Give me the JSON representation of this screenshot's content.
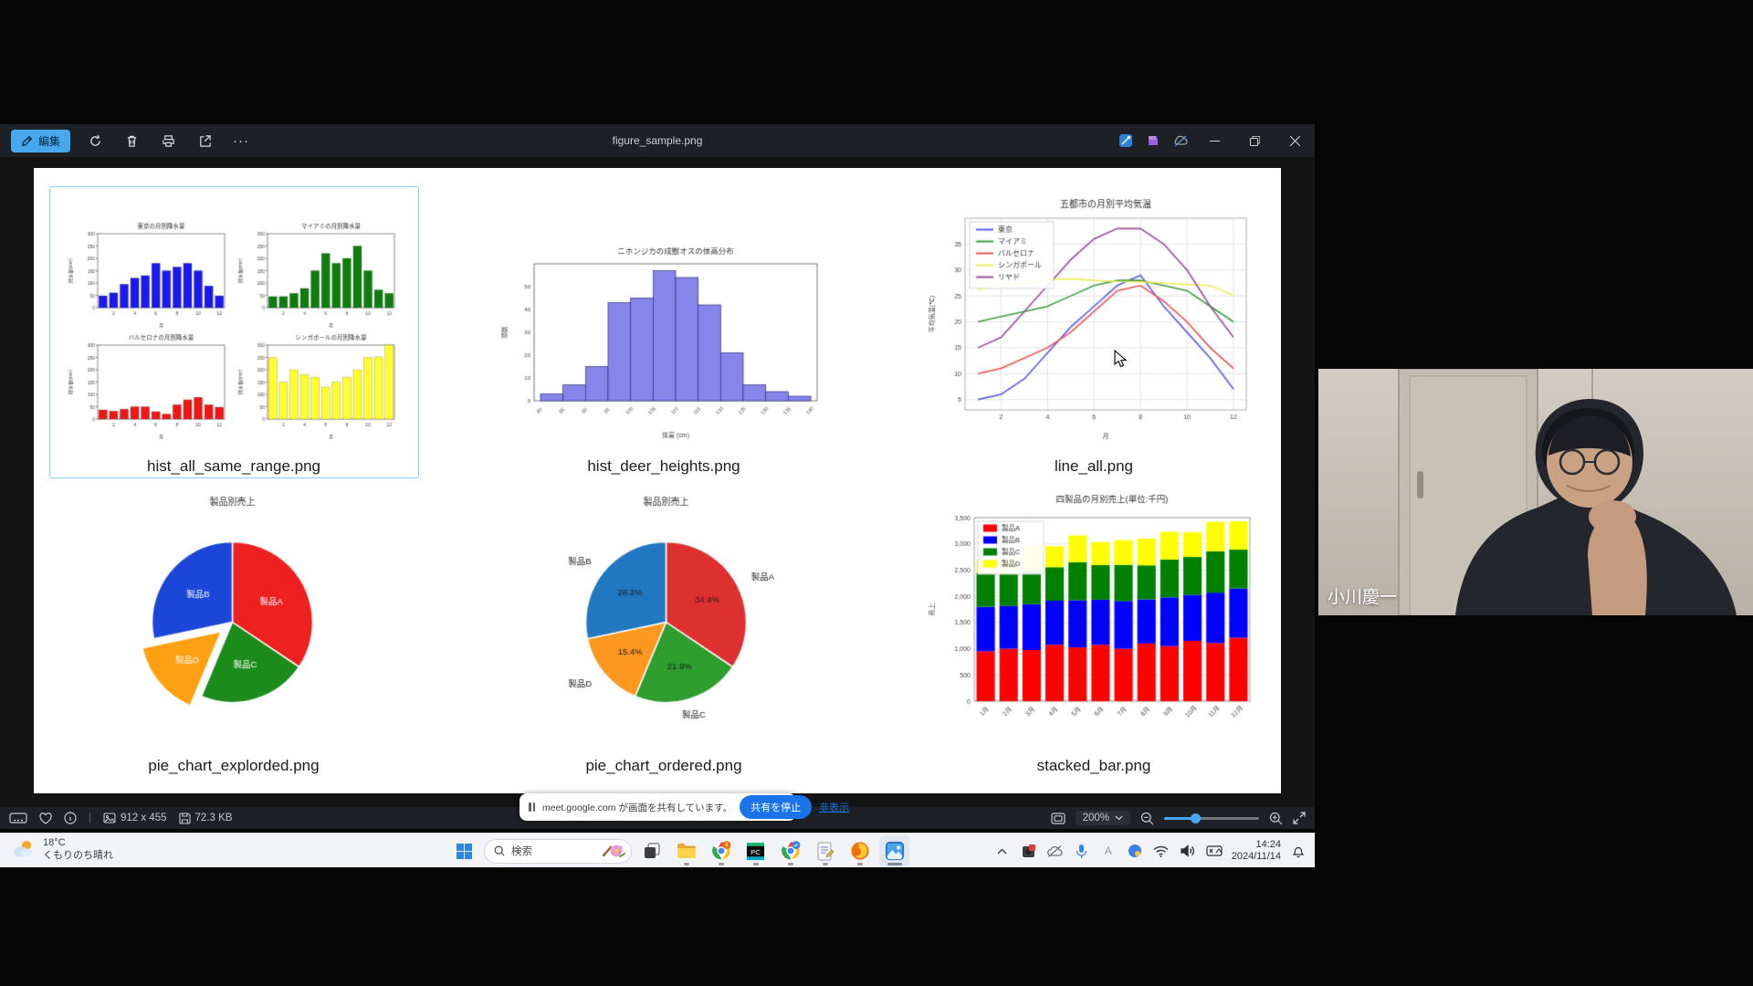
{
  "window": {
    "title": "figure_sample.png",
    "toolbar": {
      "edit_label": "編集",
      "more_glyph": "···"
    },
    "status_bar": {
      "dimensions": "912 x 455",
      "file_size": "72.3 KB",
      "zoom": "200%"
    }
  },
  "gallery": {
    "items": [
      "hist_all_same_range.png",
      "hist_deer_heights.png",
      "line_all.png",
      "pie_chart_explorded.png",
      "pie_chart_ordered.png",
      "stacked_bar.png"
    ]
  },
  "chart_data": [
    {
      "id": "hist_all_same_range",
      "type": "multi_hist",
      "xlabel": "月",
      "ylabel": "降水量(mm)",
      "ylim": [
        0,
        300
      ],
      "yticks": [
        0,
        50,
        100,
        150,
        200,
        250,
        300
      ],
      "xticks": [
        2,
        4,
        6,
        8,
        10,
        12
      ],
      "subplots": [
        {
          "title": "東京の月別降水量",
          "color": "#1a1aee",
          "values": [
            48,
            60,
            95,
            120,
            130,
            180,
            150,
            165,
            180,
            150,
            88,
            48
          ]
        },
        {
          "title": "マイアミの月別降水量",
          "color": "#0e7d0e",
          "values": [
            45,
            45,
            58,
            78,
            150,
            220,
            180,
            200,
            250,
            150,
            72,
            58
          ]
        },
        {
          "title": "バルセロナの月別降水量",
          "color": "#f01616",
          "values": [
            37,
            32,
            40,
            50,
            50,
            30,
            20,
            58,
            78,
            88,
            58,
            48
          ]
        },
        {
          "title": "シンガポールの月別降水量",
          "color": "#ffff2e",
          "values": [
            250,
            150,
            200,
            180,
            170,
            130,
            150,
            170,
            200,
            250,
            252,
            300
          ]
        }
      ]
    },
    {
      "id": "hist_deer_heights",
      "type": "hist",
      "title": "ニホンジカの成獣オスの体高分布",
      "xlabel": "体高 (cm)",
      "ylabel": "頭数",
      "bin_start": 80,
      "bin_width": 5,
      "values": [
        3,
        7,
        15,
        43,
        45,
        57,
        54,
        42,
        21,
        7,
        4,
        2
      ],
      "color": "#8585ea",
      "edge": "#33337a",
      "ylim": [
        0,
        60
      ],
      "yticks": [
        0,
        10,
        20,
        30,
        40,
        50
      ]
    },
    {
      "id": "line_all",
      "type": "line",
      "title": "五都市の月別平均気温",
      "xlabel": "月",
      "ylabel": "平均気温(℃)",
      "x": [
        1,
        2,
        3,
        4,
        5,
        6,
        7,
        8,
        9,
        10,
        11,
        12
      ],
      "series": [
        {
          "name": "東京",
          "color": "#5a5af0",
          "values": [
            5,
            6,
            9,
            14,
            19,
            23,
            27,
            29,
            23,
            18,
            13,
            7
          ]
        },
        {
          "name": "マイアミ",
          "color": "#3da03d",
          "values": [
            20,
            21,
            22,
            23,
            25,
            27,
            28,
            28,
            27,
            26,
            23,
            20
          ]
        },
        {
          "name": "バルセロナ",
          "color": "#f05050",
          "values": [
            10,
            11,
            13,
            15,
            18,
            22,
            26,
            27,
            24,
            20,
            15,
            11
          ]
        },
        {
          "name": "シンガポール",
          "color": "#eded5e",
          "values": [
            26.2,
            27.2,
            27.3,
            28.2,
            28.3,
            28,
            27.8,
            27.7,
            27.5,
            27.2,
            27,
            25.1
          ]
        },
        {
          "name": "リヤド",
          "color": "#9a4f9a",
          "values": [
            15,
            17,
            22,
            27,
            32,
            36,
            38,
            38,
            35,
            30,
            23,
            17
          ]
        }
      ],
      "ylim": [
        3,
        40
      ],
      "yticks": [
        5,
        10,
        15,
        20,
        25,
        30,
        35
      ],
      "xticks": [
        2,
        4,
        6,
        8,
        10,
        12
      ],
      "grid": true,
      "legend_position": "top-left"
    },
    {
      "id": "pie_chart_explorded",
      "type": "pie",
      "title": "製品別売上",
      "labels_inside": true,
      "show_pct": false,
      "slices": [
        {
          "label": "製品A",
          "pct": 34.4,
          "color": "#ee2020"
        },
        {
          "label": "製品C",
          "pct": 21.9,
          "color": "#1b8c1b"
        },
        {
          "label": "製品D",
          "pct": 15.4,
          "color": "#ffa012",
          "explode": true
        },
        {
          "label": "製品B",
          "pct": 28.3,
          "color": "#1b46d8"
        }
      ]
    },
    {
      "id": "pie_chart_ordered",
      "type": "pie",
      "title": "製品別売上",
      "labels_inside": false,
      "show_pct": true,
      "slices": [
        {
          "label": "製品A",
          "pct": 34.4,
          "color": "#df3030"
        },
        {
          "label": "製品C",
          "pct": 21.9,
          "color": "#2e9e2e"
        },
        {
          "label": "製品D",
          "pct": 15.4,
          "color": "#ff9820"
        },
        {
          "label": "製品B",
          "pct": 28.3,
          "color": "#2278c0"
        }
      ]
    },
    {
      "id": "stacked_bar",
      "type": "stacked_bar",
      "title": "四製品の月別売上(単位:千円)",
      "ylabel": "売上",
      "categories": [
        "1月",
        "2月",
        "3月",
        "4月",
        "5月",
        "6月",
        "7月",
        "8月",
        "9月",
        "10月",
        "11月",
        "12月"
      ],
      "series": [
        {
          "name": "製品A",
          "color": "#ff0000",
          "values": [
            950,
            1000,
            975,
            1075,
            1025,
            1075,
            1000,
            1100,
            1050,
            1150,
            1110,
            1210
          ]
        },
        {
          "name": "製品B",
          "color": "#0000ff",
          "values": [
            850,
            820,
            875,
            840,
            900,
            860,
            910,
            840,
            930,
            880,
            960,
            940
          ]
        },
        {
          "name": "製品C",
          "color": "#008000",
          "values": [
            650,
            600,
            650,
            640,
            725,
            660,
            690,
            650,
            720,
            720,
            790,
            740
          ]
        },
        {
          "name": "製品D",
          "color": "#ffff00",
          "values": [
            250,
            280,
            470,
            400,
            510,
            440,
            470,
            510,
            530,
            470,
            560,
            540
          ]
        }
      ],
      "ylim": [
        0,
        3500
      ],
      "yticks": [
        0,
        500,
        1000,
        1500,
        2000,
        2500,
        3000,
        3500
      ]
    }
  ],
  "meet_bar": {
    "message": "meet.google.com が画面を共有しています。",
    "stop_button": "共有を停止",
    "hide_link": "非表示"
  },
  "taskbar": {
    "weather": {
      "temp": "18°C",
      "desc": "くもりのち晴れ"
    },
    "search_placeholder": "検索",
    "ime_letter": "A",
    "clock": {
      "time": "14:24",
      "date": "2024/11/14"
    }
  },
  "webcam": {
    "name": "小川慶一"
  },
  "colors": {
    "accent_blue": "#47a8f0",
    "meet_blue": "#1a73e8",
    "selection_border": "#8bd4f8"
  }
}
